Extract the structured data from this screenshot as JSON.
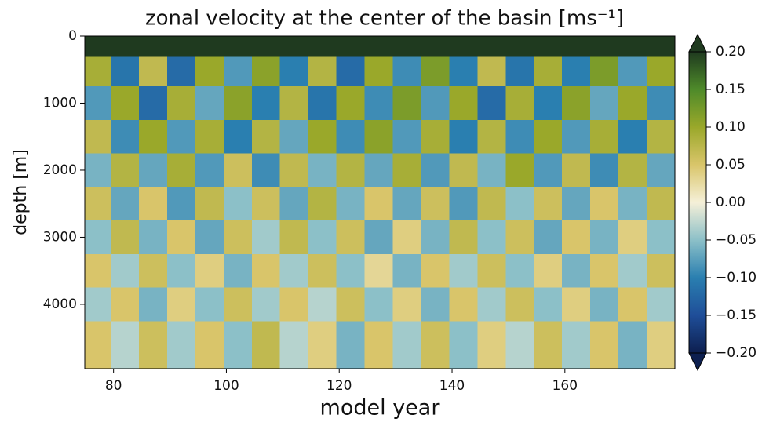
{
  "chart_data": {
    "type": "heatmap",
    "title": "zonal velocity at the center of the basin [ms⁻¹]",
    "xlabel": "model year",
    "ylabel": "depth [m]",
    "x": [
      77,
      82,
      87,
      92,
      97,
      102,
      107,
      112,
      117,
      122,
      127,
      132,
      137,
      142,
      147,
      152,
      157,
      162,
      167,
      172,
      177
    ],
    "y": [
      125,
      500,
      1000,
      1500,
      2000,
      2500,
      3000,
      3500,
      4000,
      4500
    ],
    "values": [
      [
        0.2,
        0.2,
        0.2,
        0.2,
        0.2,
        0.2,
        0.2,
        0.2,
        0.2,
        0.2,
        0.2,
        0.2,
        0.2,
        0.2,
        0.2,
        0.2,
        0.2,
        0.2,
        0.2,
        0.2,
        0.2
      ],
      [
        0.09,
        -0.11,
        0.07,
        -0.12,
        0.1,
        -0.08,
        0.11,
        -0.1,
        0.08,
        -0.12,
        0.1,
        -0.09,
        0.12,
        -0.1,
        0.07,
        -0.11,
        0.09,
        -0.1,
        0.12,
        -0.08,
        0.1
      ],
      [
        -0.08,
        0.1,
        -0.12,
        0.09,
        -0.07,
        0.11,
        -0.1,
        0.08,
        -0.11,
        0.1,
        -0.09,
        0.12,
        -0.08,
        0.1,
        -0.12,
        0.09,
        -0.1,
        0.11,
        -0.07,
        0.1,
        -0.09
      ],
      [
        0.07,
        -0.09,
        0.1,
        -0.08,
        0.09,
        -0.1,
        0.08,
        -0.07,
        0.1,
        -0.09,
        0.11,
        -0.08,
        0.09,
        -0.1,
        0.08,
        -0.09,
        0.1,
        -0.08,
        0.09,
        -0.1,
        0.08
      ],
      [
        -0.06,
        0.08,
        -0.07,
        0.09,
        -0.08,
        0.06,
        -0.09,
        0.07,
        -0.06,
        0.08,
        -0.07,
        0.09,
        -0.08,
        0.07,
        -0.06,
        0.1,
        -0.08,
        0.07,
        -0.09,
        0.08,
        -0.07
      ],
      [
        0.06,
        -0.07,
        0.05,
        -0.08,
        0.07,
        -0.05,
        0.06,
        -0.07,
        0.08,
        -0.06,
        0.05,
        -0.07,
        0.06,
        -0.08,
        0.07,
        -0.05,
        0.06,
        -0.07,
        0.05,
        -0.06,
        0.07
      ],
      [
        -0.05,
        0.07,
        -0.06,
        0.05,
        -0.07,
        0.06,
        -0.04,
        0.07,
        -0.05,
        0.06,
        -0.07,
        0.04,
        -0.06,
        0.07,
        -0.05,
        0.06,
        -0.07,
        0.05,
        -0.06,
        0.04,
        -0.05
      ],
      [
        0.05,
        -0.04,
        0.06,
        -0.05,
        0.04,
        -0.06,
        0.05,
        -0.04,
        0.06,
        -0.05,
        0.03,
        -0.06,
        0.05,
        -0.04,
        0.06,
        -0.05,
        0.04,
        -0.06,
        0.05,
        -0.04,
        0.06
      ],
      [
        -0.04,
        0.05,
        -0.06,
        0.04,
        -0.05,
        0.06,
        -0.04,
        0.05,
        -0.03,
        0.06,
        -0.05,
        0.04,
        -0.06,
        0.05,
        -0.04,
        0.06,
        -0.05,
        0.04,
        -0.06,
        0.05,
        -0.04
      ],
      [
        0.05,
        -0.03,
        0.06,
        -0.04,
        0.05,
        -0.05,
        0.07,
        -0.03,
        0.04,
        -0.06,
        0.05,
        -0.04,
        0.06,
        -0.05,
        0.04,
        -0.03,
        0.06,
        -0.04,
        0.05,
        -0.06,
        0.04
      ]
    ],
    "xlim": [
      74.9,
      179.5
    ],
    "xticks": [
      80,
      100,
      120,
      140,
      160
    ],
    "ylim": [
      4960,
      0
    ],
    "yticks": [
      0,
      1000,
      2000,
      3000,
      4000
    ],
    "clim": [
      -0.2,
      0.2
    ],
    "colormap": [
      "#0d1f4f",
      "#1f4e99",
      "#2a7fb0",
      "#8cc0c8",
      "#f5f0d8",
      "#d9c56a",
      "#9aa82a",
      "#4e8a2a",
      "#1f3a1f"
    ],
    "cticks": [
      {
        "value": 0.2,
        "label": "0.20"
      },
      0.15,
      {
        "value": 0.1,
        "label": "0.10"
      },
      0.05,
      {
        "value": 0,
        "label": "0.00"
      },
      {
        "value": -0.05,
        "label": "−0.05"
      },
      {
        "value": -0.1,
        "label": "−0.10"
      },
      {
        "value": -0.15,
        "label": "−0.15"
      },
      {
        "value": -0.2,
        "label": "−0.20"
      }
    ]
  }
}
